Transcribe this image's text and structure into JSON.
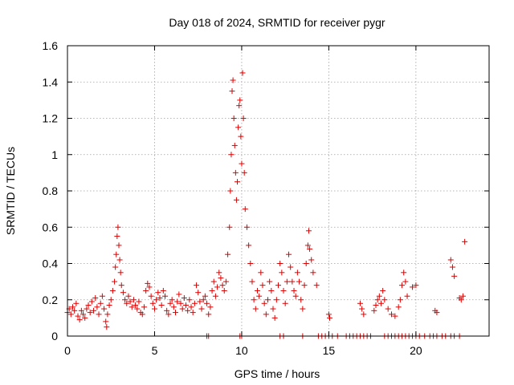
{
  "chart_data": {
    "type": "scatter",
    "title": "Day 018 of 2024, SRMTID for receiver pygr",
    "xlabel": "GPS time / hours",
    "ylabel": "SRMTID / TECUs",
    "xlim": [
      0,
      24.2
    ],
    "ylim": [
      0,
      1.6
    ],
    "xticks": [
      0,
      5,
      10,
      15,
      20
    ],
    "yticks": [
      0,
      0.2,
      0.4,
      0.6,
      0.8,
      1,
      1.2,
      1.4,
      1.6
    ],
    "xtick_labels": [
      "0",
      "5",
      "10",
      "15",
      "20"
    ],
    "ytick_labels": [
      "0",
      "0.2",
      "0.4",
      "0.6",
      "0.8",
      "1",
      "1.2",
      "1.4",
      "1.6"
    ],
    "grid": true,
    "marker": "plus",
    "marker_color": "#e00000",
    "series": [
      {
        "name": "SRMTID",
        "points": [
          [
            0.0,
            0.13
          ],
          [
            0.1,
            0.15
          ],
          [
            0.2,
            0.12
          ],
          [
            0.3,
            0.16
          ],
          [
            0.4,
            0.14
          ],
          [
            0.5,
            0.18
          ],
          [
            0.6,
            0.11
          ],
          [
            0.7,
            0.09
          ],
          [
            0.8,
            0.14
          ],
          [
            0.9,
            0.12
          ],
          [
            1.0,
            0.1
          ],
          [
            1.1,
            0.15
          ],
          [
            1.2,
            0.17
          ],
          [
            1.3,
            0.13
          ],
          [
            1.4,
            0.19
          ],
          [
            1.5,
            0.14
          ],
          [
            1.6,
            0.21
          ],
          [
            1.7,
            0.16
          ],
          [
            1.8,
            0.12
          ],
          [
            1.9,
            0.18
          ],
          [
            2.0,
            0.22
          ],
          [
            2.1,
            0.15
          ],
          [
            2.2,
            0.08
          ],
          [
            2.25,
            0.05
          ],
          [
            2.3,
            0.12
          ],
          [
            2.4,
            0.17
          ],
          [
            2.5,
            0.2
          ],
          [
            2.6,
            0.25
          ],
          [
            2.7,
            0.3
          ],
          [
            2.75,
            0.38
          ],
          [
            2.8,
            0.45
          ],
          [
            2.85,
            0.55
          ],
          [
            2.9,
            0.6
          ],
          [
            2.95,
            0.5
          ],
          [
            3.0,
            0.42
          ],
          [
            3.05,
            0.35
          ],
          [
            3.1,
            0.28
          ],
          [
            3.2,
            0.24
          ],
          [
            3.3,
            0.2
          ],
          [
            3.4,
            0.18
          ],
          [
            3.5,
            0.22
          ],
          [
            3.6,
            0.19
          ],
          [
            3.7,
            0.16
          ],
          [
            3.8,
            0.2
          ],
          [
            3.9,
            0.17
          ],
          [
            4.0,
            0.15
          ],
          [
            4.1,
            0.19
          ],
          [
            4.2,
            0.13
          ],
          [
            4.3,
            0.12
          ],
          [
            4.4,
            0.16
          ],
          [
            4.5,
            0.25
          ],
          [
            4.6,
            0.29
          ],
          [
            4.7,
            0.27
          ],
          [
            4.8,
            0.22
          ],
          [
            4.9,
            0.18
          ],
          [
            5.0,
            0.15
          ],
          [
            5.1,
            0.2
          ],
          [
            5.2,
            0.24
          ],
          [
            5.3,
            0.21
          ],
          [
            5.4,
            0.17
          ],
          [
            5.5,
            0.25
          ],
          [
            5.6,
            0.22
          ],
          [
            5.7,
            0.14
          ],
          [
            5.8,
            0.12
          ],
          [
            5.9,
            0.18
          ],
          [
            6.0,
            0.2
          ],
          [
            6.1,
            0.16
          ],
          [
            6.2,
            0.13
          ],
          [
            6.3,
            0.19
          ],
          [
            6.4,
            0.23
          ],
          [
            6.5,
            0.18
          ],
          [
            6.6,
            0.15
          ],
          [
            6.7,
            0.21
          ],
          [
            6.8,
            0.17
          ],
          [
            6.9,
            0.14
          ],
          [
            7.0,
            0.2
          ],
          [
            7.1,
            0.16
          ],
          [
            7.2,
            0.13
          ],
          [
            7.3,
            0.18
          ],
          [
            7.4,
            0.28
          ],
          [
            7.5,
            0.24
          ],
          [
            7.6,
            0.19
          ],
          [
            7.7,
            0.15
          ],
          [
            7.8,
            0.2
          ],
          [
            7.9,
            0.22
          ],
          [
            8.0,
            0.18
          ],
          [
            8.1,
            0.12
          ],
          [
            8.2,
            0.16
          ],
          [
            8.3,
            0.25
          ],
          [
            8.4,
            0.3
          ],
          [
            8.5,
            0.22
          ],
          [
            8.6,
            0.27
          ],
          [
            8.7,
            0.35
          ],
          [
            8.8,
            0.32
          ],
          [
            8.9,
            0.28
          ],
          [
            9.0,
            0.25
          ],
          [
            9.1,
            0.3
          ],
          [
            9.2,
            0.45
          ],
          [
            9.3,
            0.6
          ],
          [
            9.35,
            0.8
          ],
          [
            9.4,
            1.0
          ],
          [
            9.45,
            1.35
          ],
          [
            9.5,
            1.41
          ],
          [
            9.55,
            1.2
          ],
          [
            9.6,
            1.05
          ],
          [
            9.65,
            0.9
          ],
          [
            9.7,
            0.75
          ],
          [
            9.75,
            0.85
          ],
          [
            9.8,
            1.15
          ],
          [
            9.85,
            1.27
          ],
          [
            9.9,
            1.3
          ],
          [
            9.95,
            1.1
          ],
          [
            10.0,
            0.95
          ],
          [
            10.05,
            1.45
          ],
          [
            10.1,
            1.2
          ],
          [
            10.15,
            0.9
          ],
          [
            10.2,
            0.7
          ],
          [
            10.3,
            0.6
          ],
          [
            10.4,
            0.5
          ],
          [
            10.5,
            0.4
          ],
          [
            10.6,
            0.3
          ],
          [
            10.7,
            0.2
          ],
          [
            10.8,
            0.15
          ],
          [
            10.9,
            0.25
          ],
          [
            11.0,
            0.22
          ],
          [
            11.1,
            0.35
          ],
          [
            11.2,
            0.28
          ],
          [
            11.3,
            0.18
          ],
          [
            11.4,
            0.12
          ],
          [
            11.5,
            0.2
          ],
          [
            11.6,
            0.3
          ],
          [
            11.7,
            0.25
          ],
          [
            11.8,
            0.15
          ],
          [
            11.9,
            0.1
          ],
          [
            12.0,
            0.2
          ],
          [
            12.1,
            0.28
          ],
          [
            12.2,
            0.4
          ],
          [
            12.3,
            0.35
          ],
          [
            12.4,
            0.25
          ],
          [
            12.5,
            0.18
          ],
          [
            12.6,
            0.3
          ],
          [
            12.7,
            0.45
          ],
          [
            12.8,
            0.38
          ],
          [
            12.9,
            0.3
          ],
          [
            13.0,
            0.25
          ],
          [
            13.1,
            0.22
          ],
          [
            13.2,
            0.35
          ],
          [
            13.3,
            0.3
          ],
          [
            13.4,
            0.2
          ],
          [
            13.5,
            0.15
          ],
          [
            13.6,
            0.28
          ],
          [
            13.7,
            0.4
          ],
          [
            13.8,
            0.5
          ],
          [
            13.85,
            0.58
          ],
          [
            13.9,
            0.48
          ],
          [
            14.0,
            0.42
          ],
          [
            14.1,
            0.35
          ],
          [
            14.3,
            0.28
          ],
          [
            15.0,
            0.12
          ],
          [
            15.05,
            0.1
          ],
          [
            16.8,
            0.18
          ],
          [
            16.9,
            0.15
          ],
          [
            17.0,
            0.12
          ],
          [
            17.6,
            0.14
          ],
          [
            17.7,
            0.17
          ],
          [
            17.8,
            0.2
          ],
          [
            17.9,
            0.22
          ],
          [
            18.0,
            0.18
          ],
          [
            18.1,
            0.25
          ],
          [
            18.2,
            0.2
          ],
          [
            18.4,
            0.15
          ],
          [
            18.6,
            0.12
          ],
          [
            18.8,
            0.11
          ],
          [
            19.0,
            0.16
          ],
          [
            19.1,
            0.2
          ],
          [
            19.2,
            0.28
          ],
          [
            19.3,
            0.35
          ],
          [
            19.4,
            0.3
          ],
          [
            19.5,
            0.22
          ],
          [
            19.8,
            0.27
          ],
          [
            20.0,
            0.28
          ],
          [
            21.1,
            0.14
          ],
          [
            21.2,
            0.13
          ],
          [
            22.0,
            0.42
          ],
          [
            22.1,
            0.38
          ],
          [
            22.2,
            0.33
          ],
          [
            22.5,
            0.21
          ],
          [
            22.6,
            0.2
          ],
          [
            22.7,
            0.22
          ],
          [
            22.8,
            0.52
          ]
        ]
      }
    ],
    "zero_points_x": [
      8.0,
      8.1,
      9.9,
      10.0,
      12.2,
      12.4,
      13.5,
      14.4,
      14.6,
      14.8,
      15.0,
      15.2,
      15.5,
      16.0,
      16.2,
      16.4,
      16.6,
      16.8,
      17.0,
      17.2,
      17.4,
      18.2,
      18.4,
      18.6,
      18.8,
      19.0,
      19.2,
      19.4,
      19.6,
      19.8,
      20.0,
      20.2,
      20.5,
      20.8,
      21.0,
      21.2,
      21.5,
      21.7,
      22.0,
      22.2,
      22.5
    ]
  }
}
